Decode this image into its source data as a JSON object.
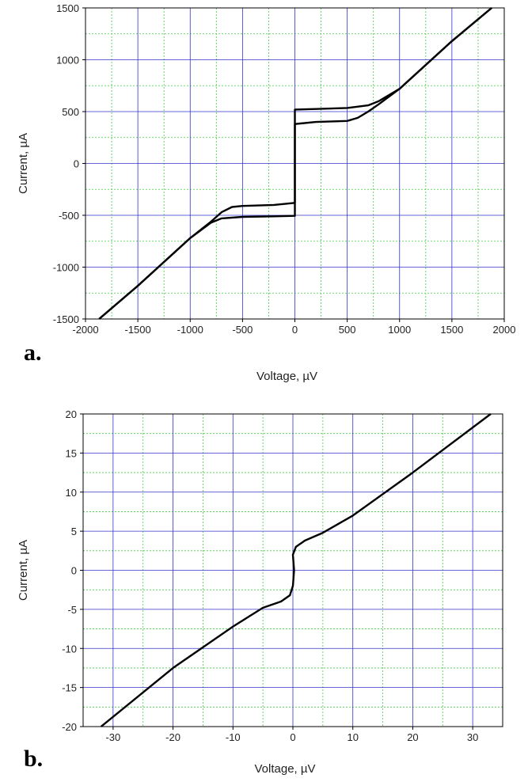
{
  "chart_data": [
    {
      "type": "line",
      "panel_label": "a.",
      "x_label": "Voltage, µV",
      "y_label": "Current, µA",
      "xlim": [
        -2000,
        2000
      ],
      "ylim": [
        -1500,
        1500
      ],
      "xticks": [
        -2000,
        -1500,
        -1000,
        -500,
        0,
        500,
        1000,
        1500,
        2000
      ],
      "yticks": [
        -1500,
        -1000,
        -500,
        0,
        500,
        1000,
        1500
      ],
      "grid": true,
      "minor_grid": true,
      "series": [
        {
          "color": "#000000",
          "x": [
            -1870,
            -1500,
            -1000,
            -800,
            -700,
            -500,
            -200,
            0,
            0,
            200,
            500,
            700,
            800,
            1000,
            1500,
            1880
          ],
          "values": [
            -1500,
            -1180,
            -720,
            -570,
            -530,
            -515,
            -510,
            -505,
            520,
            525,
            535,
            560,
            600,
            720,
            1180,
            1500
          ]
        },
        {
          "color": "#000000",
          "x": [
            -1870,
            -1500,
            -1000,
            -800,
            -700,
            -600,
            -500,
            -200,
            0,
            0,
            200,
            500,
            600,
            700,
            800,
            1000,
            1500,
            1880
          ],
          "values": [
            -1500,
            -1180,
            -720,
            -560,
            -470,
            -420,
            -410,
            -400,
            -380,
            380,
            400,
            410,
            440,
            500,
            570,
            720,
            1180,
            1500
          ]
        }
      ]
    },
    {
      "type": "line",
      "panel_label": "b.",
      "x_label": "Voltage, µV",
      "y_label": "Current, µA",
      "xlim": [
        -35,
        35
      ],
      "ylim": [
        -20,
        20
      ],
      "xticks": [
        -30,
        -20,
        -10,
        0,
        10,
        20,
        30
      ],
      "yticks": [
        -20,
        -15,
        -10,
        -5,
        0,
        5,
        10,
        15,
        20
      ],
      "grid": true,
      "minor_grid": true,
      "series": [
        {
          "color": "#000000",
          "x": [
            -32,
            -20,
            -10,
            -5,
            -2,
            -0.5,
            0,
            0.2,
            0,
            0.5,
            2,
            5,
            10,
            20,
            33
          ],
          "values": [
            -20,
            -12.5,
            -7.2,
            -4.8,
            -4,
            -3.2,
            -2,
            0,
            2,
            3,
            3.8,
            4.8,
            7,
            12.5,
            20
          ]
        }
      ]
    }
  ]
}
